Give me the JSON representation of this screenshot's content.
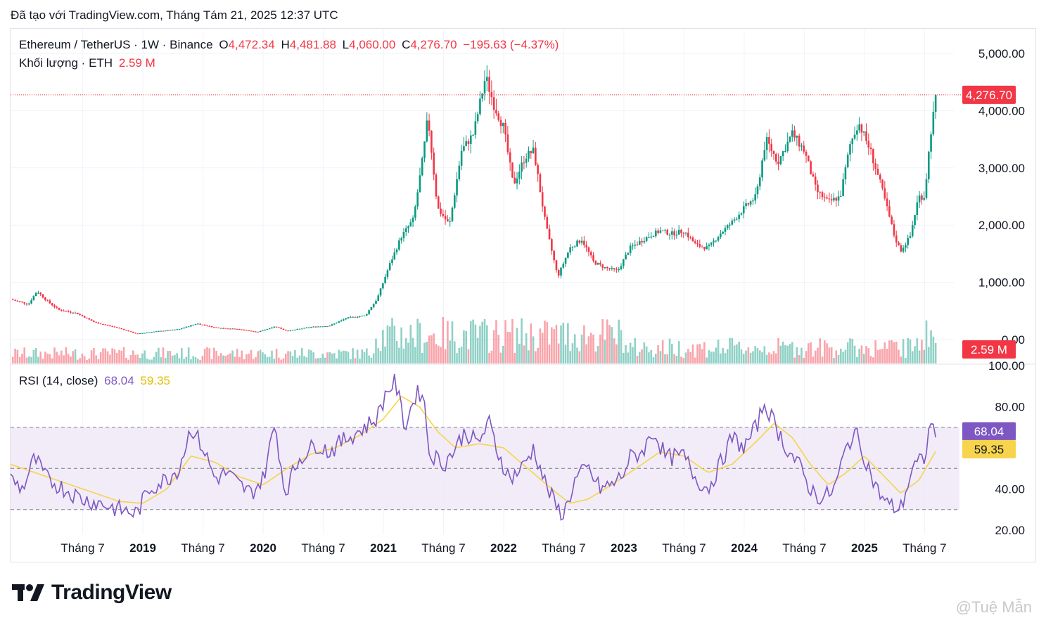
{
  "caption": "Đã tạo với TradingView.com, Tháng Tám 21, 2025 12:37 UTC",
  "legend": {
    "symbol": "Ethereum / TetherUS · 1W · Binance",
    "o_label": "O",
    "o_value": "4,472.34",
    "h_label": "H",
    "h_value": "4,481.88",
    "l_label": "L",
    "l_value": "4,060.00",
    "c_label": "C",
    "c_value": "4,276.70",
    "change": "−195.63 (−4.37%)",
    "volume_label": "Khối lượng · ETH",
    "volume_value": "2.59 M",
    "rsi_label": "RSI (14, close)",
    "rsi_value": "68.04",
    "rsi_ma_value": "59.35"
  },
  "colors": {
    "up": "#089981",
    "down": "#f23645",
    "rsi": "#7e57c2",
    "rsi_ma": "#f7d44c",
    "band": "#ede7f6"
  },
  "logo_text": "TradingView",
  "watermark": "@Tuệ Mẫn",
  "chart_data": [
    {
      "type": "candlestick",
      "title": "Ethereum / TetherUS · 1W · Binance",
      "y_axis_ticks": [
        "5,000.00",
        "4,000.00",
        "3,000.00",
        "2,000.00",
        "1,000.00",
        "0.00"
      ],
      "ylim": [
        0,
        5000
      ],
      "price_label": "4,276.70",
      "x_axis_ticks": [
        "Tháng 7",
        "2019",
        "Tháng 7",
        "2020",
        "Tháng 7",
        "2021",
        "Tháng 7",
        "2022",
        "Tháng 7",
        "2023",
        "Tháng 7",
        "2024",
        "Tháng 7",
        "2025",
        "Tháng 7"
      ],
      "x_tick_bold": [
        false,
        true,
        false,
        true,
        false,
        true,
        false,
        true,
        false,
        true,
        false,
        true,
        false,
        true,
        false
      ],
      "x_tick_dates": [
        2018.5,
        2019,
        2019.5,
        2020,
        2020.5,
        2021,
        2021.5,
        2022,
        2022.5,
        2023,
        2023.5,
        2024,
        2024.5,
        2025,
        2025.5
      ],
      "x_range": [
        2017.9,
        2025.65
      ],
      "approx_close_path": [
        [
          2017.9,
          700
        ],
        [
          2018.05,
          620
        ],
        [
          2018.12,
          850
        ],
        [
          2018.2,
          680
        ],
        [
          2018.3,
          520
        ],
        [
          2018.45,
          460
        ],
        [
          2018.6,
          300
        ],
        [
          2018.8,
          200
        ],
        [
          2018.95,
          100
        ],
        [
          2019.1,
          140
        ],
        [
          2019.3,
          180
        ],
        [
          2019.45,
          280
        ],
        [
          2019.6,
          210
        ],
        [
          2019.8,
          180
        ],
        [
          2019.95,
          130
        ],
        [
          2020.1,
          230
        ],
        [
          2020.2,
          150
        ],
        [
          2020.4,
          220
        ],
        [
          2020.55,
          240
        ],
        [
          2020.7,
          380
        ],
        [
          2020.85,
          420
        ],
        [
          2020.95,
          720
        ],
        [
          2021.05,
          1300
        ],
        [
          2021.15,
          1800
        ],
        [
          2021.25,
          2100
        ],
        [
          2021.33,
          3200
        ],
        [
          2021.37,
          3900
        ],
        [
          2021.45,
          2300
        ],
        [
          2021.55,
          2000
        ],
        [
          2021.65,
          3300
        ],
        [
          2021.75,
          3600
        ],
        [
          2021.85,
          4600
        ],
        [
          2021.92,
          4100
        ],
        [
          2022.0,
          3700
        ],
        [
          2022.08,
          2700
        ],
        [
          2022.18,
          3200
        ],
        [
          2022.25,
          3300
        ],
        [
          2022.35,
          2000
        ],
        [
          2022.45,
          1100
        ],
        [
          2022.55,
          1600
        ],
        [
          2022.65,
          1750
        ],
        [
          2022.75,
          1350
        ],
        [
          2022.85,
          1250
        ],
        [
          2022.95,
          1200
        ],
        [
          2023.05,
          1600
        ],
        [
          2023.2,
          1800
        ],
        [
          2023.3,
          1900
        ],
        [
          2023.4,
          1850
        ],
        [
          2023.5,
          1900
        ],
        [
          2023.6,
          1650
        ],
        [
          2023.7,
          1600
        ],
        [
          2023.8,
          1850
        ],
        [
          2023.9,
          2050
        ],
        [
          2024.0,
          2300
        ],
        [
          2024.1,
          2500
        ],
        [
          2024.18,
          3500
        ],
        [
          2024.28,
          3100
        ],
        [
          2024.4,
          3600
        ],
        [
          2024.5,
          3300
        ],
        [
          2024.6,
          2600
        ],
        [
          2024.7,
          2400
        ],
        [
          2024.8,
          2500
        ],
        [
          2024.88,
          3400
        ],
        [
          2024.95,
          3800
        ],
        [
          2025.05,
          3300
        ],
        [
          2025.15,
          2600
        ],
        [
          2025.25,
          1800
        ],
        [
          2025.3,
          1550
        ],
        [
          2025.38,
          1800
        ],
        [
          2025.45,
          2500
        ],
        [
          2025.5,
          2500
        ],
        [
          2025.55,
          3600
        ],
        [
          2025.6,
          4300
        ]
      ]
    },
    {
      "type": "bar",
      "title": "Khối lượng · ETH",
      "last_value_label": "2.59 M"
    },
    {
      "type": "line",
      "title": "RSI (14, close)",
      "y_axis_ticks": [
        "100.00",
        "80.00",
        "40.00",
        "20.00"
      ],
      "ylim": [
        20,
        100
      ],
      "bands": [
        30,
        50,
        70
      ],
      "series": [
        {
          "name": "RSI",
          "last_value": 68.04
        },
        {
          "name": "MA",
          "last_value": 59.35
        }
      ],
      "approx_rsi_path": [
        [
          2017.9,
          45
        ],
        [
          2018.0,
          40
        ],
        [
          2018.1,
          55
        ],
        [
          2018.2,
          45
        ],
        [
          2018.35,
          40
        ],
        [
          2018.5,
          35
        ],
        [
          2018.65,
          33
        ],
        [
          2018.8,
          30
        ],
        [
          2018.95,
          28
        ],
        [
          2019.05,
          40
        ],
        [
          2019.2,
          45
        ],
        [
          2019.3,
          50
        ],
        [
          2019.4,
          70
        ],
        [
          2019.5,
          60
        ],
        [
          2019.6,
          45
        ],
        [
          2019.7,
          48
        ],
        [
          2019.8,
          42
        ],
        [
          2019.9,
          38
        ],
        [
          2020.0,
          45
        ],
        [
          2020.1,
          72
        ],
        [
          2020.18,
          38
        ],
        [
          2020.3,
          55
        ],
        [
          2020.45,
          62
        ],
        [
          2020.55,
          58
        ],
        [
          2020.7,
          65
        ],
        [
          2020.85,
          70
        ],
        [
          2020.95,
          75
        ],
        [
          2021.03,
          88
        ],
        [
          2021.1,
          92
        ],
        [
          2021.18,
          70
        ],
        [
          2021.26,
          85
        ],
        [
          2021.33,
          88
        ],
        [
          2021.38,
          58
        ],
        [
          2021.5,
          52
        ],
        [
          2021.6,
          60
        ],
        [
          2021.68,
          68
        ],
        [
          2021.78,
          62
        ],
        [
          2021.88,
          72
        ],
        [
          2021.95,
          58
        ],
        [
          2022.05,
          45
        ],
        [
          2022.15,
          50
        ],
        [
          2022.25,
          60
        ],
        [
          2022.35,
          42
        ],
        [
          2022.45,
          30
        ],
        [
          2022.5,
          28
        ],
        [
          2022.6,
          45
        ],
        [
          2022.7,
          50
        ],
        [
          2022.8,
          40
        ],
        [
          2022.9,
          42
        ],
        [
          2022.98,
          46
        ],
        [
          2023.05,
          55
        ],
        [
          2023.15,
          58
        ],
        [
          2023.25,
          68
        ],
        [
          2023.35,
          55
        ],
        [
          2023.5,
          56
        ],
        [
          2023.6,
          45
        ],
        [
          2023.7,
          40
        ],
        [
          2023.8,
          52
        ],
        [
          2023.9,
          65
        ],
        [
          2024.0,
          60
        ],
        [
          2024.1,
          70
        ],
        [
          2024.17,
          82
        ],
        [
          2024.25,
          72
        ],
        [
          2024.35,
          60
        ],
        [
          2024.45,
          52
        ],
        [
          2024.55,
          40
        ],
        [
          2024.65,
          35
        ],
        [
          2024.75,
          40
        ],
        [
          2024.85,
          60
        ],
        [
          2024.92,
          68
        ],
        [
          2025.0,
          56
        ],
        [
          2025.1,
          40
        ],
        [
          2025.2,
          32
        ],
        [
          2025.3,
          30
        ],
        [
          2025.4,
          50
        ],
        [
          2025.5,
          55
        ],
        [
          2025.55,
          72
        ],
        [
          2025.6,
          68
        ]
      ],
      "approx_ma_path": [
        [
          2017.9,
          52
        ],
        [
          2018.2,
          46
        ],
        [
          2018.5,
          40
        ],
        [
          2018.8,
          34
        ],
        [
          2019.0,
          33
        ],
        [
          2019.2,
          40
        ],
        [
          2019.4,
          56
        ],
        [
          2019.6,
          53
        ],
        [
          2019.8,
          46
        ],
        [
          2020.0,
          42
        ],
        [
          2020.2,
          50
        ],
        [
          2020.4,
          57
        ],
        [
          2020.6,
          60
        ],
        [
          2020.8,
          66
        ],
        [
          2021.0,
          74
        ],
        [
          2021.15,
          85
        ],
        [
          2021.3,
          80
        ],
        [
          2021.45,
          68
        ],
        [
          2021.6,
          60
        ],
        [
          2021.8,
          62
        ],
        [
          2022.0,
          60
        ],
        [
          2022.2,
          50
        ],
        [
          2022.4,
          40
        ],
        [
          2022.55,
          33
        ],
        [
          2022.7,
          35
        ],
        [
          2022.9,
          42
        ],
        [
          2023.1,
          50
        ],
        [
          2023.3,
          58
        ],
        [
          2023.5,
          56
        ],
        [
          2023.7,
          48
        ],
        [
          2023.9,
          52
        ],
        [
          2024.1,
          63
        ],
        [
          2024.25,
          72
        ],
        [
          2024.4,
          65
        ],
        [
          2024.55,
          52
        ],
        [
          2024.7,
          42
        ],
        [
          2024.85,
          48
        ],
        [
          2025.0,
          56
        ],
        [
          2025.15,
          47
        ],
        [
          2025.3,
          38
        ],
        [
          2025.45,
          44
        ],
        [
          2025.6,
          59
        ]
      ]
    }
  ]
}
